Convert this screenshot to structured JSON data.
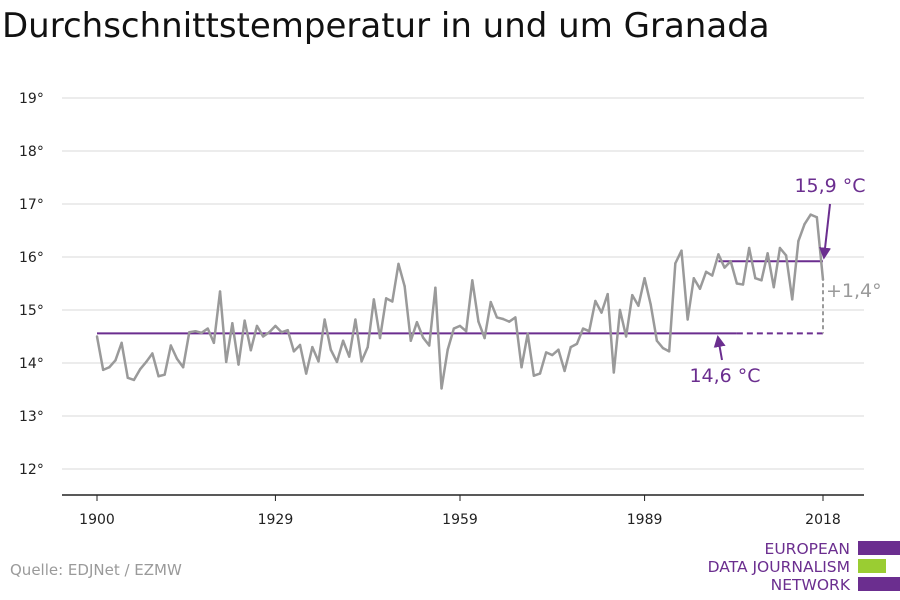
{
  "title": "Durchschnittstemperatur in und um Granada",
  "source": "Quelle: EDJNet / EZMW",
  "logo": {
    "lines": [
      "EUROPEAN",
      "DATA JOURNALISM",
      "NETWORK"
    ],
    "colors": [
      "#6b2e8f",
      "#9acd32",
      "#6b2e8f"
    ]
  },
  "colors": {
    "series": "#9a9a9a",
    "accent": "#6b2e8f",
    "grid": "#d9d9d9",
    "axis": "#222222"
  },
  "chart_data": {
    "type": "line",
    "title": "Durchschnittstemperatur in und um Granada",
    "xlabel": "",
    "ylabel": "",
    "xlim": [
      1900,
      2018
    ],
    "ylim": [
      11.5,
      19.5
    ],
    "x_ticks": [
      1900,
      1929,
      1959,
      1989,
      2018
    ],
    "x_tick_labels": [
      "1900",
      "1929",
      "1959",
      "1989",
      "2018"
    ],
    "y_ticks": [
      12,
      13,
      14,
      15,
      16,
      17,
      18,
      19
    ],
    "y_tick_labels": [
      "12°",
      "13°",
      "14°",
      "15°",
      "16°",
      "17°",
      "18°",
      "19°"
    ],
    "grid": true,
    "legend": "none",
    "series": [
      {
        "start_year": 1900,
        "values": [
          14.5,
          13.87,
          13.92,
          14.05,
          14.38,
          13.72,
          13.68,
          13.88,
          14.02,
          14.18,
          13.75,
          13.78,
          14.33,
          14.08,
          13.92,
          14.58,
          14.6,
          14.57,
          14.65,
          14.38,
          15.35,
          14.02,
          14.75,
          13.97,
          14.8,
          14.24,
          14.7,
          14.5,
          14.58,
          14.7,
          14.58,
          14.62,
          14.22,
          14.34,
          13.8,
          14.3,
          14.03,
          14.82,
          14.25,
          14.02,
          14.42,
          14.12,
          14.82,
          14.03,
          14.3,
          15.2,
          14.47,
          15.22,
          15.16,
          15.87,
          15.45,
          14.42,
          14.77,
          14.48,
          14.33,
          15.42,
          13.52,
          14.25,
          14.65,
          14.7,
          14.6,
          15.56,
          14.78,
          14.47,
          15.15,
          14.86,
          14.83,
          14.78,
          14.86,
          13.92,
          14.55,
          13.76,
          13.8,
          14.2,
          14.15,
          14.25,
          13.85,
          14.3,
          14.36,
          14.65,
          14.6,
          15.17,
          14.95,
          15.3,
          13.82,
          15.0,
          14.5,
          15.28,
          15.08,
          15.6,
          15.1,
          14.42,
          14.28,
          14.22,
          15.88,
          16.12,
          14.82,
          15.6,
          15.4,
          15.72,
          15.65,
          16.05,
          15.8,
          15.92,
          15.5,
          15.48,
          16.17,
          15.6,
          15.56,
          16.07,
          15.43,
          16.17,
          16.03,
          15.2,
          16.3,
          16.62,
          16.8,
          16.75,
          15.57
        ]
      }
    ],
    "reference_lines": [
      {
        "value": 14.56,
        "from": 1900,
        "to": 2018,
        "solid_to": 2004,
        "label": "14,6 °C"
      },
      {
        "value": 15.92,
        "from": 2001,
        "to": 2018,
        "label": "15,9 °C"
      }
    ],
    "annotations": [
      {
        "text": "15,9 °C",
        "x": 2018,
        "y": 15.92
      },
      {
        "text": "14,6 °C",
        "x": 2004,
        "y": 14.56
      },
      {
        "text": "+1,4°",
        "x": 2018,
        "y": 15.24
      }
    ]
  }
}
